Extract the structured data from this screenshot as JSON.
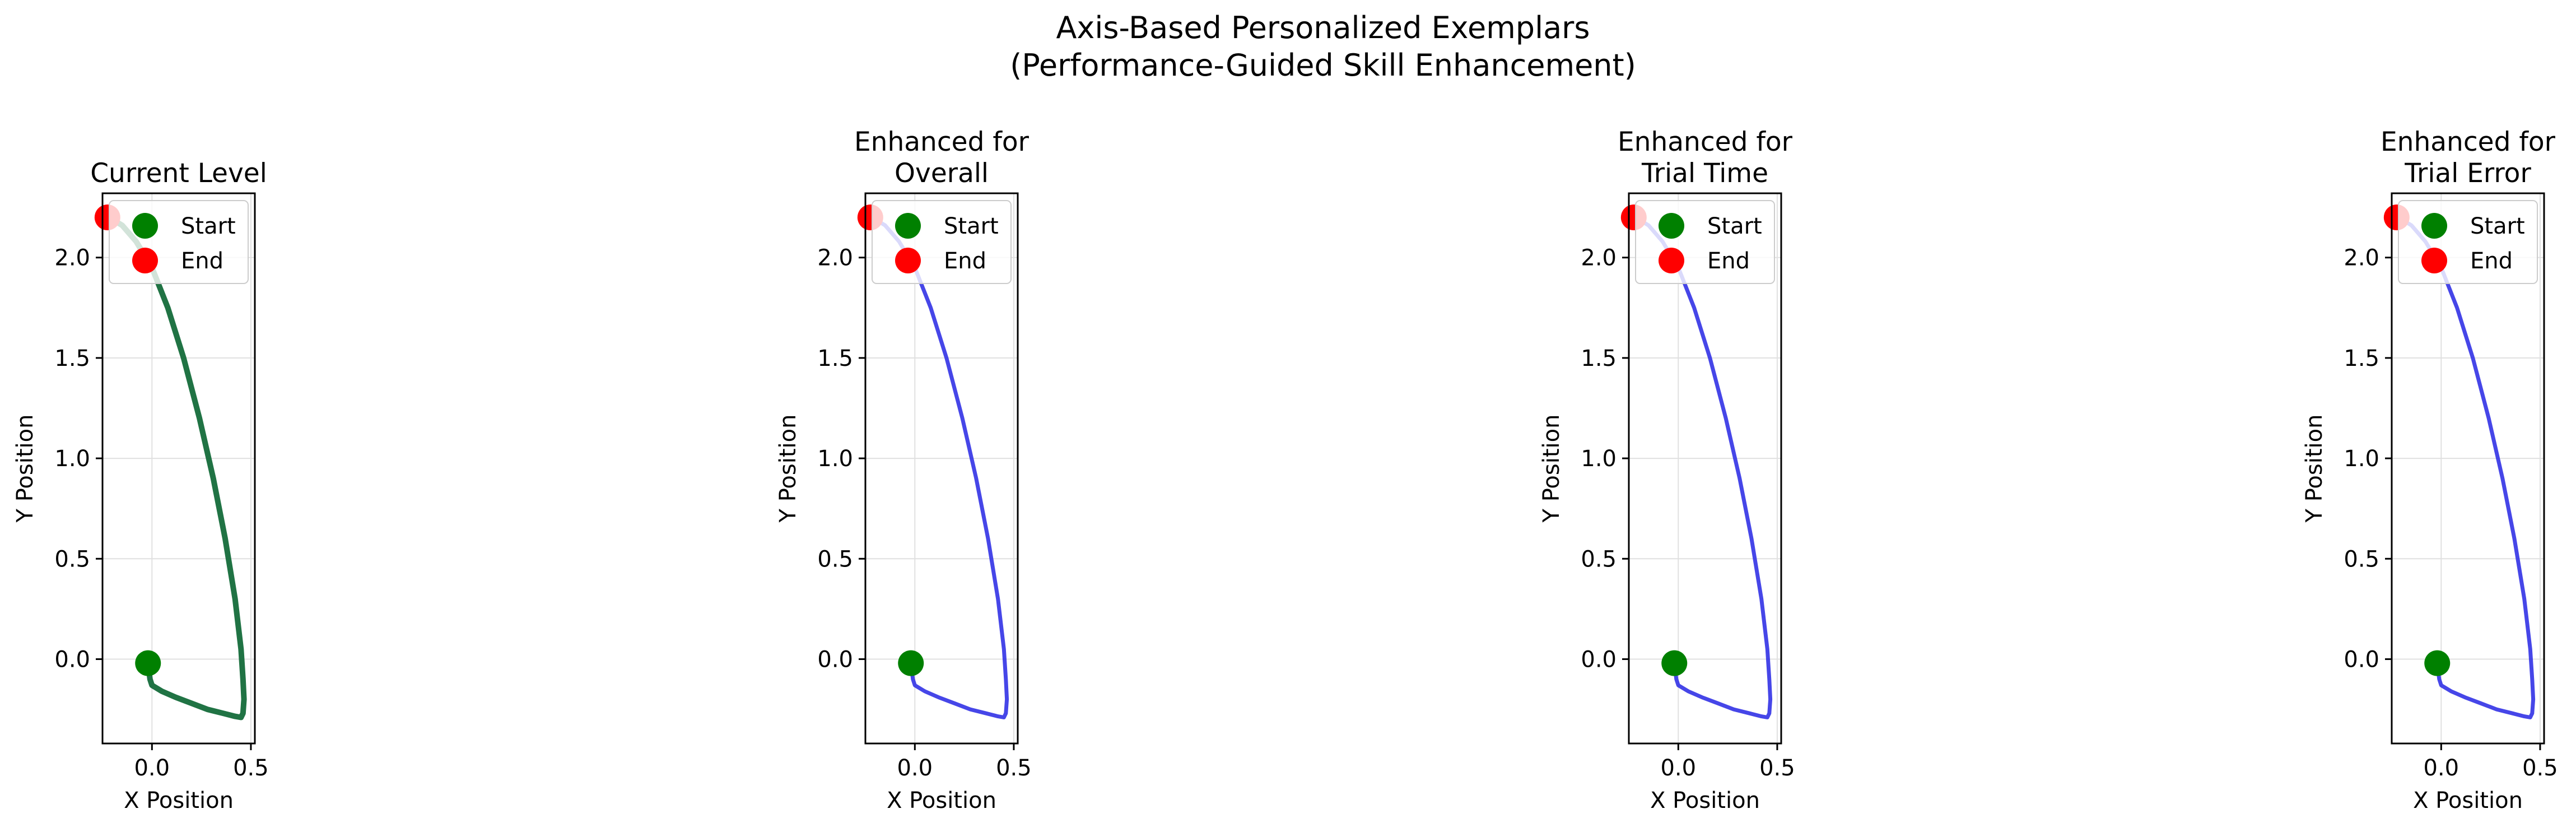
{
  "figure": {
    "title_line1": "Axis-Based Personalized Exemplars",
    "title_line2": "(Performance-Guided Skill Enhancement)"
  },
  "colors": {
    "current": "#146b3a",
    "enhanced": "#3232e6",
    "start_marker": "#008000",
    "end_marker": "#ff0000",
    "grid": "#e0e0e0"
  },
  "chart_data": [
    {
      "type": "line",
      "title_lines": [
        "Current Level"
      ],
      "xlabel": "X Position",
      "ylabel": "Y Position",
      "xlim": [
        -0.25,
        0.52
      ],
      "ylim": [
        -0.42,
        2.32
      ],
      "xticks": [
        0.0,
        0.5
      ],
      "xtick_labels": [
        "0.0",
        "0.5"
      ],
      "yticks": [
        0.0,
        0.5,
        1.0,
        1.5,
        2.0
      ],
      "ytick_labels": [
        "0.0",
        "0.5",
        "1.0",
        "1.5",
        "2.0"
      ],
      "grid": true,
      "legend": {
        "location": "upper right",
        "entries": [
          "Start",
          "End"
        ]
      },
      "series": [
        {
          "style": "current",
          "x": [
            -0.02,
            -0.01,
            0.0,
            0.05,
            0.12,
            0.2,
            0.28,
            0.36,
            0.42,
            0.45,
            0.46,
            0.465,
            0.46,
            0.45,
            0.42,
            0.37,
            0.31,
            0.24,
            0.16,
            0.08,
            0.0,
            -0.08,
            -0.15,
            -0.2,
            -0.225
          ],
          "y": [
            -0.02,
            -0.1,
            -0.13,
            -0.16,
            -0.19,
            -0.22,
            -0.25,
            -0.27,
            -0.285,
            -0.29,
            -0.27,
            -0.2,
            -0.1,
            0.05,
            0.3,
            0.6,
            0.9,
            1.2,
            1.5,
            1.75,
            1.95,
            2.08,
            2.16,
            2.19,
            2.2
          ]
        }
      ],
      "points": {
        "start": {
          "x": -0.02,
          "y": -0.02
        },
        "end": {
          "x": -0.225,
          "y": 2.2
        }
      }
    },
    {
      "type": "line",
      "title_lines": [
        "Enhanced for",
        "Overall"
      ],
      "xlabel": "X Position",
      "ylabel": "Y Position",
      "xlim": [
        -0.25,
        0.52
      ],
      "ylim": [
        -0.42,
        2.32
      ],
      "xticks": [
        0.0,
        0.5
      ],
      "xtick_labels": [
        "0.0",
        "0.5"
      ],
      "yticks": [
        0.0,
        0.5,
        1.0,
        1.5,
        2.0
      ],
      "ytick_labels": [
        "0.0",
        "0.5",
        "1.0",
        "1.5",
        "2.0"
      ],
      "grid": true,
      "legend": {
        "location": "upper right",
        "entries": [
          "Start",
          "End"
        ]
      },
      "series": [
        {
          "style": "enhanced",
          "x": [
            -0.02,
            -0.01,
            0.0,
            0.05,
            0.12,
            0.2,
            0.28,
            0.36,
            0.42,
            0.45,
            0.46,
            0.465,
            0.46,
            0.45,
            0.42,
            0.37,
            0.31,
            0.24,
            0.16,
            0.08,
            0.0,
            -0.08,
            -0.15,
            -0.2,
            -0.225
          ],
          "y": [
            -0.02,
            -0.1,
            -0.13,
            -0.16,
            -0.19,
            -0.22,
            -0.25,
            -0.27,
            -0.285,
            -0.29,
            -0.27,
            -0.2,
            -0.1,
            0.05,
            0.3,
            0.6,
            0.9,
            1.2,
            1.5,
            1.75,
            1.95,
            2.08,
            2.16,
            2.19,
            2.2
          ]
        }
      ],
      "points": {
        "start": {
          "x": -0.02,
          "y": -0.02
        },
        "end": {
          "x": -0.225,
          "y": 2.2
        }
      }
    },
    {
      "type": "line",
      "title_lines": [
        "Enhanced for",
        "Trial Time"
      ],
      "xlabel": "X Position",
      "ylabel": "Y Position",
      "xlim": [
        -0.25,
        0.52
      ],
      "ylim": [
        -0.42,
        2.32
      ],
      "xticks": [
        0.0,
        0.5
      ],
      "xtick_labels": [
        "0.0",
        "0.5"
      ],
      "yticks": [
        0.0,
        0.5,
        1.0,
        1.5,
        2.0
      ],
      "ytick_labels": [
        "0.0",
        "0.5",
        "1.0",
        "1.5",
        "2.0"
      ],
      "grid": true,
      "legend": {
        "location": "upper right",
        "entries": [
          "Start",
          "End"
        ]
      },
      "series": [
        {
          "style": "enhanced",
          "x": [
            -0.02,
            -0.01,
            0.0,
            0.05,
            0.12,
            0.2,
            0.28,
            0.36,
            0.42,
            0.45,
            0.46,
            0.465,
            0.46,
            0.45,
            0.42,
            0.37,
            0.31,
            0.24,
            0.16,
            0.08,
            0.0,
            -0.08,
            -0.15,
            -0.2,
            -0.225
          ],
          "y": [
            -0.02,
            -0.1,
            -0.13,
            -0.16,
            -0.19,
            -0.22,
            -0.25,
            -0.27,
            -0.285,
            -0.29,
            -0.27,
            -0.2,
            -0.1,
            0.05,
            0.3,
            0.6,
            0.9,
            1.2,
            1.5,
            1.75,
            1.95,
            2.08,
            2.16,
            2.19,
            2.2
          ]
        }
      ],
      "points": {
        "start": {
          "x": -0.02,
          "y": -0.02
        },
        "end": {
          "x": -0.225,
          "y": 2.2
        }
      }
    },
    {
      "type": "line",
      "title_lines": [
        "Enhanced for",
        "Trial Error"
      ],
      "xlabel": "X Position",
      "ylabel": "Y Position",
      "xlim": [
        -0.25,
        0.52
      ],
      "ylim": [
        -0.42,
        2.32
      ],
      "xticks": [
        0.0,
        0.5
      ],
      "xtick_labels": [
        "0.0",
        "0.5"
      ],
      "yticks": [
        0.0,
        0.5,
        1.0,
        1.5,
        2.0
      ],
      "ytick_labels": [
        "0.0",
        "0.5",
        "1.0",
        "1.5",
        "2.0"
      ],
      "grid": true,
      "legend": {
        "location": "upper right",
        "entries": [
          "Start",
          "End"
        ]
      },
      "series": [
        {
          "style": "enhanced",
          "x": [
            -0.02,
            -0.01,
            0.0,
            0.05,
            0.12,
            0.2,
            0.28,
            0.36,
            0.42,
            0.45,
            0.46,
            0.465,
            0.46,
            0.45,
            0.42,
            0.37,
            0.31,
            0.24,
            0.16,
            0.08,
            0.0,
            -0.08,
            -0.15,
            -0.2,
            -0.225
          ],
          "y": [
            -0.02,
            -0.1,
            -0.13,
            -0.16,
            -0.19,
            -0.22,
            -0.25,
            -0.27,
            -0.285,
            -0.29,
            -0.27,
            -0.2,
            -0.1,
            0.05,
            0.3,
            0.6,
            0.9,
            1.2,
            1.5,
            1.75,
            1.95,
            2.08,
            2.16,
            2.19,
            2.2
          ]
        }
      ],
      "points": {
        "start": {
          "x": -0.02,
          "y": -0.02
        },
        "end": {
          "x": -0.225,
          "y": 2.2
        }
      }
    }
  ]
}
